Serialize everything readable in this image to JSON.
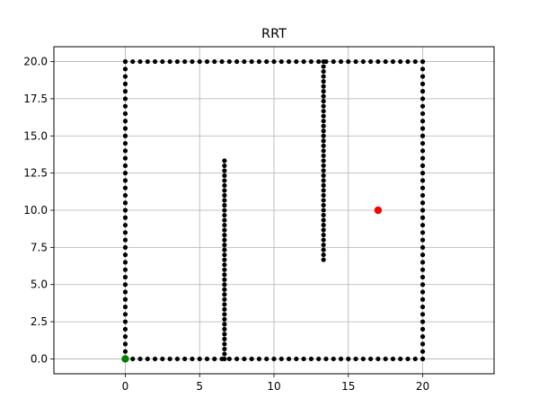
{
  "chart_data": {
    "type": "scatter",
    "title": "RRT",
    "xlabel": "",
    "ylabel": "",
    "xlim": [
      -4.8,
      24.8
    ],
    "ylim": [
      -1.0,
      21.0
    ],
    "grid": true,
    "x_ticks": [
      0,
      5,
      10,
      15,
      20
    ],
    "x_tick_labels": [
      "0",
      "5",
      "10",
      "15",
      "20"
    ],
    "y_ticks": [
      0.0,
      2.5,
      5.0,
      7.5,
      10.0,
      12.5,
      15.0,
      17.5,
      20.0
    ],
    "y_tick_labels": [
      "0.0",
      "2.5",
      "5.0",
      "7.5",
      "10.0",
      "12.5",
      "15.0",
      "17.5",
      "20.0"
    ],
    "obstacle_segments": [
      {
        "from": [
          0,
          0
        ],
        "to": [
          20,
          0
        ],
        "count": 41
      },
      {
        "from": [
          20,
          0
        ],
        "to": [
          20,
          20
        ],
        "count": 41
      },
      {
        "from": [
          20,
          20
        ],
        "to": [
          0,
          20
        ],
        "count": 41
      },
      {
        "from": [
          0,
          20
        ],
        "to": [
          0,
          0
        ],
        "count": 41
      },
      {
        "from": [
          6.67,
          0
        ],
        "to": [
          6.67,
          13.33
        ],
        "count": 41
      },
      {
        "from": [
          13.33,
          20
        ],
        "to": [
          13.33,
          6.67
        ],
        "count": 41
      }
    ],
    "start": {
      "x": 0,
      "y": 0
    },
    "goal": {
      "x": 17,
      "y": 10
    },
    "colors": {
      "obstacle": "#000000",
      "start": "#008000",
      "goal": "#ff0000"
    }
  }
}
